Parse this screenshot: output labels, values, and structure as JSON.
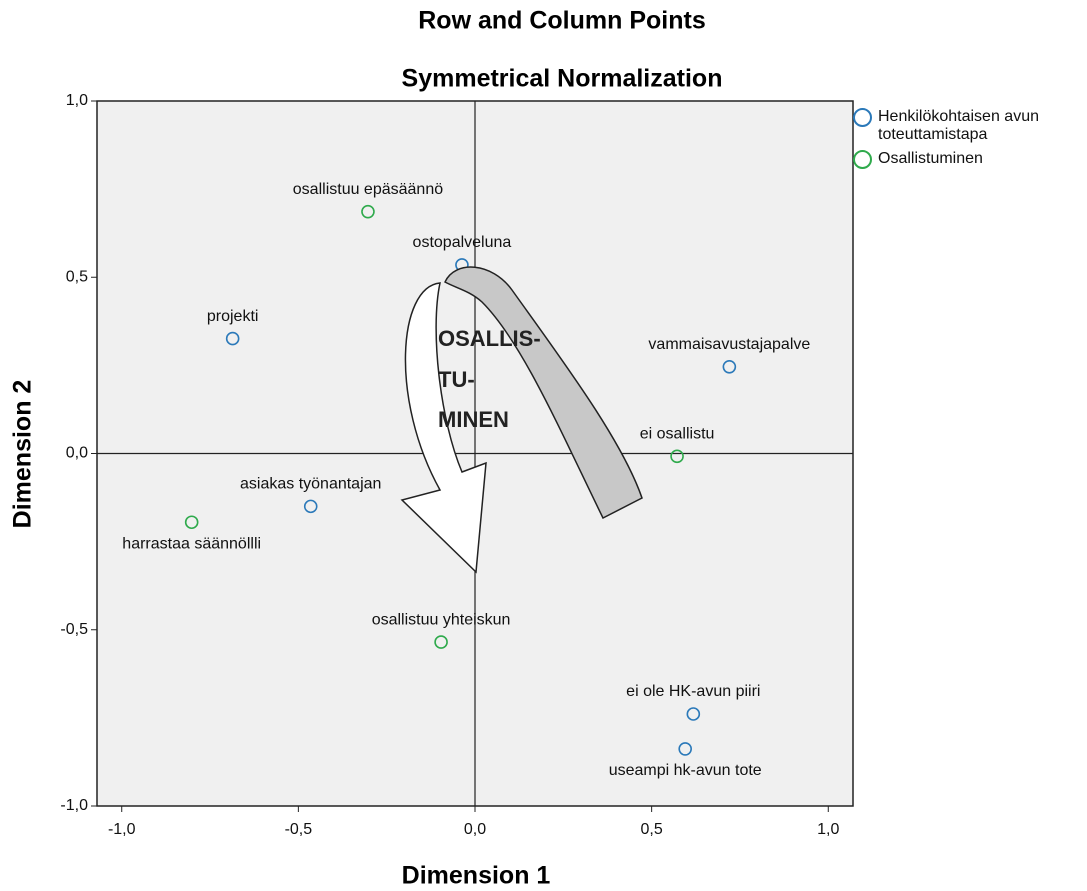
{
  "chart_data": {
    "type": "scatter",
    "title": "Row and Column Points",
    "subtitle": "Symmetrical Normalization",
    "x_label": "Dimension 1",
    "y_label": "Dimension 2",
    "xlim": [
      -1.07,
      1.07
    ],
    "ylim": [
      -1.0,
      1.0
    ],
    "xticks": [
      {
        "value": -1.0,
        "label": "-1,0"
      },
      {
        "value": -0.5,
        "label": "-0,5"
      },
      {
        "value": 0.0,
        "label": "0,0"
      },
      {
        "value": 0.5,
        "label": "0,5"
      },
      {
        "value": 1.0,
        "label": "1,0"
      }
    ],
    "yticks": [
      {
        "value": -1.0,
        "label": "-1,0"
      },
      {
        "value": -0.5,
        "label": "-0,5"
      },
      {
        "value": 0.0,
        "label": "0,0"
      },
      {
        "value": 0.5,
        "label": "0,5"
      },
      {
        "value": 1.0,
        "label": "1,0"
      }
    ],
    "legend": "right",
    "series": [
      {
        "name": "Henkilökohtaisen avun toteuttamistapa",
        "color": "#2b79b9",
        "labels": [
          "ostopalveluna",
          "projekti",
          "vammaisavustajapalve",
          "asiakas työnantajan",
          "ei ole HK-avun piiri",
          "useampi hk-avun tote"
        ],
        "x": [
          -0.037,
          -0.686,
          0.72,
          -0.465,
          0.618,
          0.595
        ],
        "values": [
          0.535,
          0.326,
          0.246,
          -0.15,
          -0.739,
          -0.838
        ]
      },
      {
        "name": "Osallistuminen",
        "color": "#2faa4c",
        "labels": [
          "osallistuu epäsäännö",
          "ei osallistu",
          "harrastaa säännöllli",
          "osallistuu yhteiskun"
        ],
        "x": [
          -0.303,
          0.572,
          -0.802,
          -0.096
        ],
        "values": [
          0.686,
          -0.008,
          -0.195,
          -0.535
        ]
      }
    ],
    "annotation": [
      "OSALLIS-",
      "TU-",
      "MINEN"
    ]
  }
}
